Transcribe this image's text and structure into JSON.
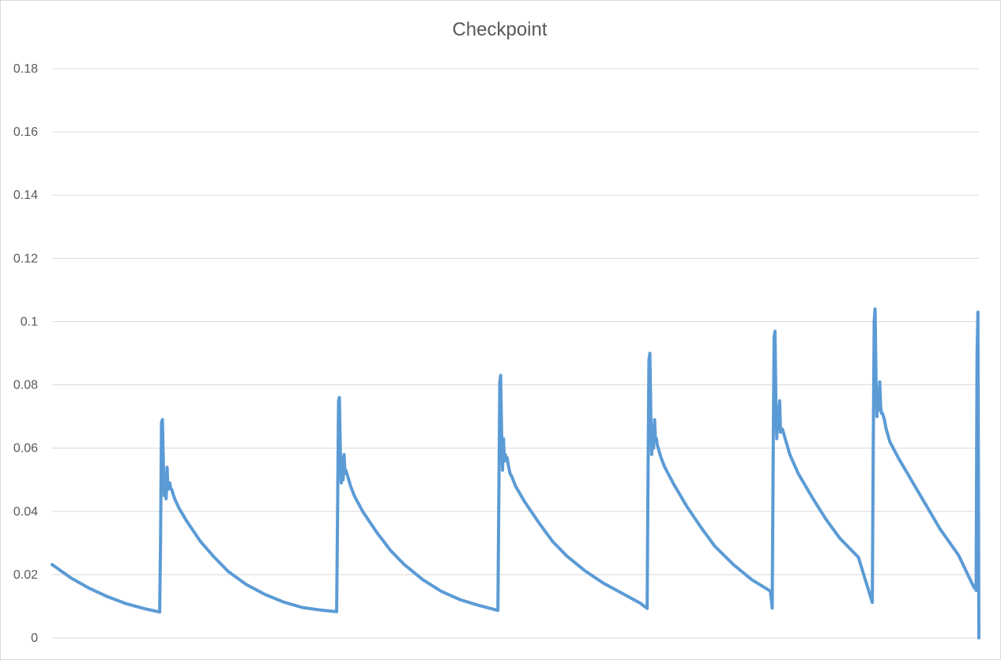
{
  "chart_data": {
    "type": "line",
    "title": "Checkpoint",
    "xlabel": "",
    "ylabel": "",
    "ylim": [
      0,
      0.18
    ],
    "yticks": [
      "0",
      "0.02",
      "0.04",
      "0.06",
      "0.08",
      "0.1",
      "0.12",
      "0.14",
      "0.16",
      "0.18"
    ],
    "xlim": [
      0,
      1000
    ],
    "grid": "horizontal",
    "legend": "none",
    "colors": {
      "series": "#5b9bd5",
      "grid": "#d9d9d9",
      "text": "#595959"
    },
    "series": [
      {
        "x": [
          0,
          20,
          40,
          60,
          80,
          100,
          116,
          117,
          118,
          119,
          120,
          121,
          122,
          123,
          124,
          125,
          126,
          127,
          128,
          129,
          131,
          133,
          137,
          145,
          160,
          175,
          190,
          210,
          230,
          250,
          270,
          290,
          307,
          308,
          309,
          310,
          311,
          312,
          313,
          314,
          315,
          316,
          317,
          318,
          320,
          322,
          326,
          335,
          350,
          365,
          380,
          400,
          420,
          440,
          460,
          481,
          482,
          483,
          484,
          485,
          486,
          487,
          488,
          489,
          490,
          491,
          492,
          494,
          496,
          500,
          510,
          525,
          540,
          555,
          575,
          595,
          615,
          635,
          642,
          643,
          644,
          645,
          646,
          647,
          648,
          649,
          650,
          651,
          652,
          653,
          655,
          657,
          661,
          670,
          685,
          700,
          715,
          735,
          755,
          775,
          777,
          778,
          779,
          780,
          781,
          782,
          783,
          784,
          785,
          786,
          787,
          788,
          790,
          792,
          796,
          805,
          820,
          835,
          850,
          870,
          885,
          886,
          887,
          888,
          889,
          890,
          891,
          892,
          893,
          894,
          895,
          896,
          898,
          900,
          904,
          913,
          928,
          943,
          958,
          978,
          995,
          996,
          997,
          998,
          999,
          1000
        ],
        "values": [
          0.0232,
          0.019,
          0.0157,
          0.013,
          0.0108,
          0.0092,
          0.0082,
          0.03,
          0.068,
          0.069,
          0.055,
          0.045,
          0.052,
          0.044,
          0.054,
          0.047,
          0.048,
          0.049,
          0.047,
          0.047,
          0.045,
          0.0435,
          0.041,
          0.037,
          0.0305,
          0.0255,
          0.021,
          0.0168,
          0.0137,
          0.0113,
          0.0096,
          0.0088,
          0.0083,
          0.04,
          0.075,
          0.076,
          0.059,
          0.049,
          0.057,
          0.05,
          0.058,
          0.052,
          0.053,
          0.052,
          0.05,
          0.048,
          0.045,
          0.04,
          0.0335,
          0.0277,
          0.0232,
          0.0184,
          0.0147,
          0.0121,
          0.0103,
          0.0087,
          0.045,
          0.081,
          0.083,
          0.065,
          0.053,
          0.063,
          0.056,
          0.058,
          0.056,
          0.057,
          0.055,
          0.052,
          0.051,
          0.048,
          0.043,
          0.0365,
          0.0305,
          0.026,
          0.0212,
          0.0173,
          0.0141,
          0.0109,
          0.0093,
          0.05,
          0.088,
          0.09,
          0.07,
          0.058,
          0.067,
          0.06,
          0.069,
          0.063,
          0.063,
          0.061,
          0.059,
          0.057,
          0.054,
          0.049,
          0.0415,
          0.035,
          0.029,
          0.0232,
          0.0184,
          0.0148,
          0.0094,
          0.055,
          0.095,
          0.097,
          0.075,
          0.063,
          0.073,
          0.066,
          0.075,
          0.065,
          0.066,
          0.066,
          0.064,
          0.062,
          0.058,
          0.052,
          0.0445,
          0.0375,
          0.0315,
          0.0255,
          0.0112,
          0.06,
          0.1,
          0.104,
          0.082,
          0.07,
          0.079,
          0.072,
          0.081,
          0.073,
          0.071,
          0.071,
          0.069,
          0.066,
          0.062,
          0.057,
          0.0495,
          0.042,
          0.0345,
          0.0262,
          0.0158,
          0.0165,
          0.015,
          0.09,
          0.103,
          0.0
        ]
      }
    ]
  }
}
